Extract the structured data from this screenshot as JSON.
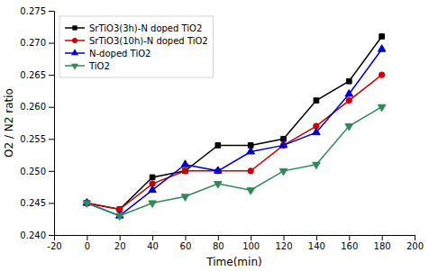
{
  "chart_data": {
    "type": "line",
    "x": [
      0,
      20,
      40,
      60,
      80,
      100,
      120,
      140,
      160,
      180
    ],
    "xlabel": "Time(min)",
    "ylabel": "O2 / N2 ratio",
    "series": [
      {
        "name": "SrTiO3(3h)-N doped TiO2",
        "color": "#000000",
        "marker": "square",
        "line_style": "solid",
        "values": [
          0.245,
          0.244,
          0.249,
          0.25,
          0.254,
          0.254,
          0.255,
          0.261,
          0.264,
          0.271
        ]
      },
      {
        "name": "SrTiO3(10h)-N doped TiO2",
        "color": "#cc0000",
        "marker": "circle",
        "line_style": "solid",
        "values": [
          0.245,
          0.244,
          0.248,
          0.25,
          0.25,
          0.25,
          0.254,
          0.257,
          0.261,
          0.265
        ]
      },
      {
        "name": "N-doped TiO2",
        "color": "#0000cc",
        "marker": "triangle-up",
        "line_style": "solid",
        "values": [
          0.245,
          0.243,
          0.247,
          0.251,
          0.25,
          0.253,
          0.254,
          0.256,
          0.262,
          0.269
        ]
      },
      {
        "name": "TiO2",
        "color": "#2e8b57",
        "marker": "triangle-down",
        "line_style": "solid",
        "values": [
          0.245,
          0.243,
          0.245,
          0.246,
          0.248,
          0.247,
          0.25,
          0.251,
          0.257,
          0.26
        ]
      }
    ],
    "xlim": [
      -20,
      200
    ],
    "ylim": [
      0.24,
      0.275
    ],
    "xticks": [
      -20,
      0,
      20,
      40,
      60,
      80,
      100,
      120,
      140,
      160,
      180,
      200
    ],
    "yticks": [
      {
        "value": 0.24,
        "label": "0.240"
      },
      0.245,
      {
        "value": 0.25,
        "label": "0.250"
      },
      0.255,
      {
        "value": 0.26,
        "label": "0.260"
      },
      0.265,
      {
        "value": 0.27,
        "label": "0.270"
      },
      0.275
    ],
    "grid": false,
    "legend": "upper-left"
  }
}
